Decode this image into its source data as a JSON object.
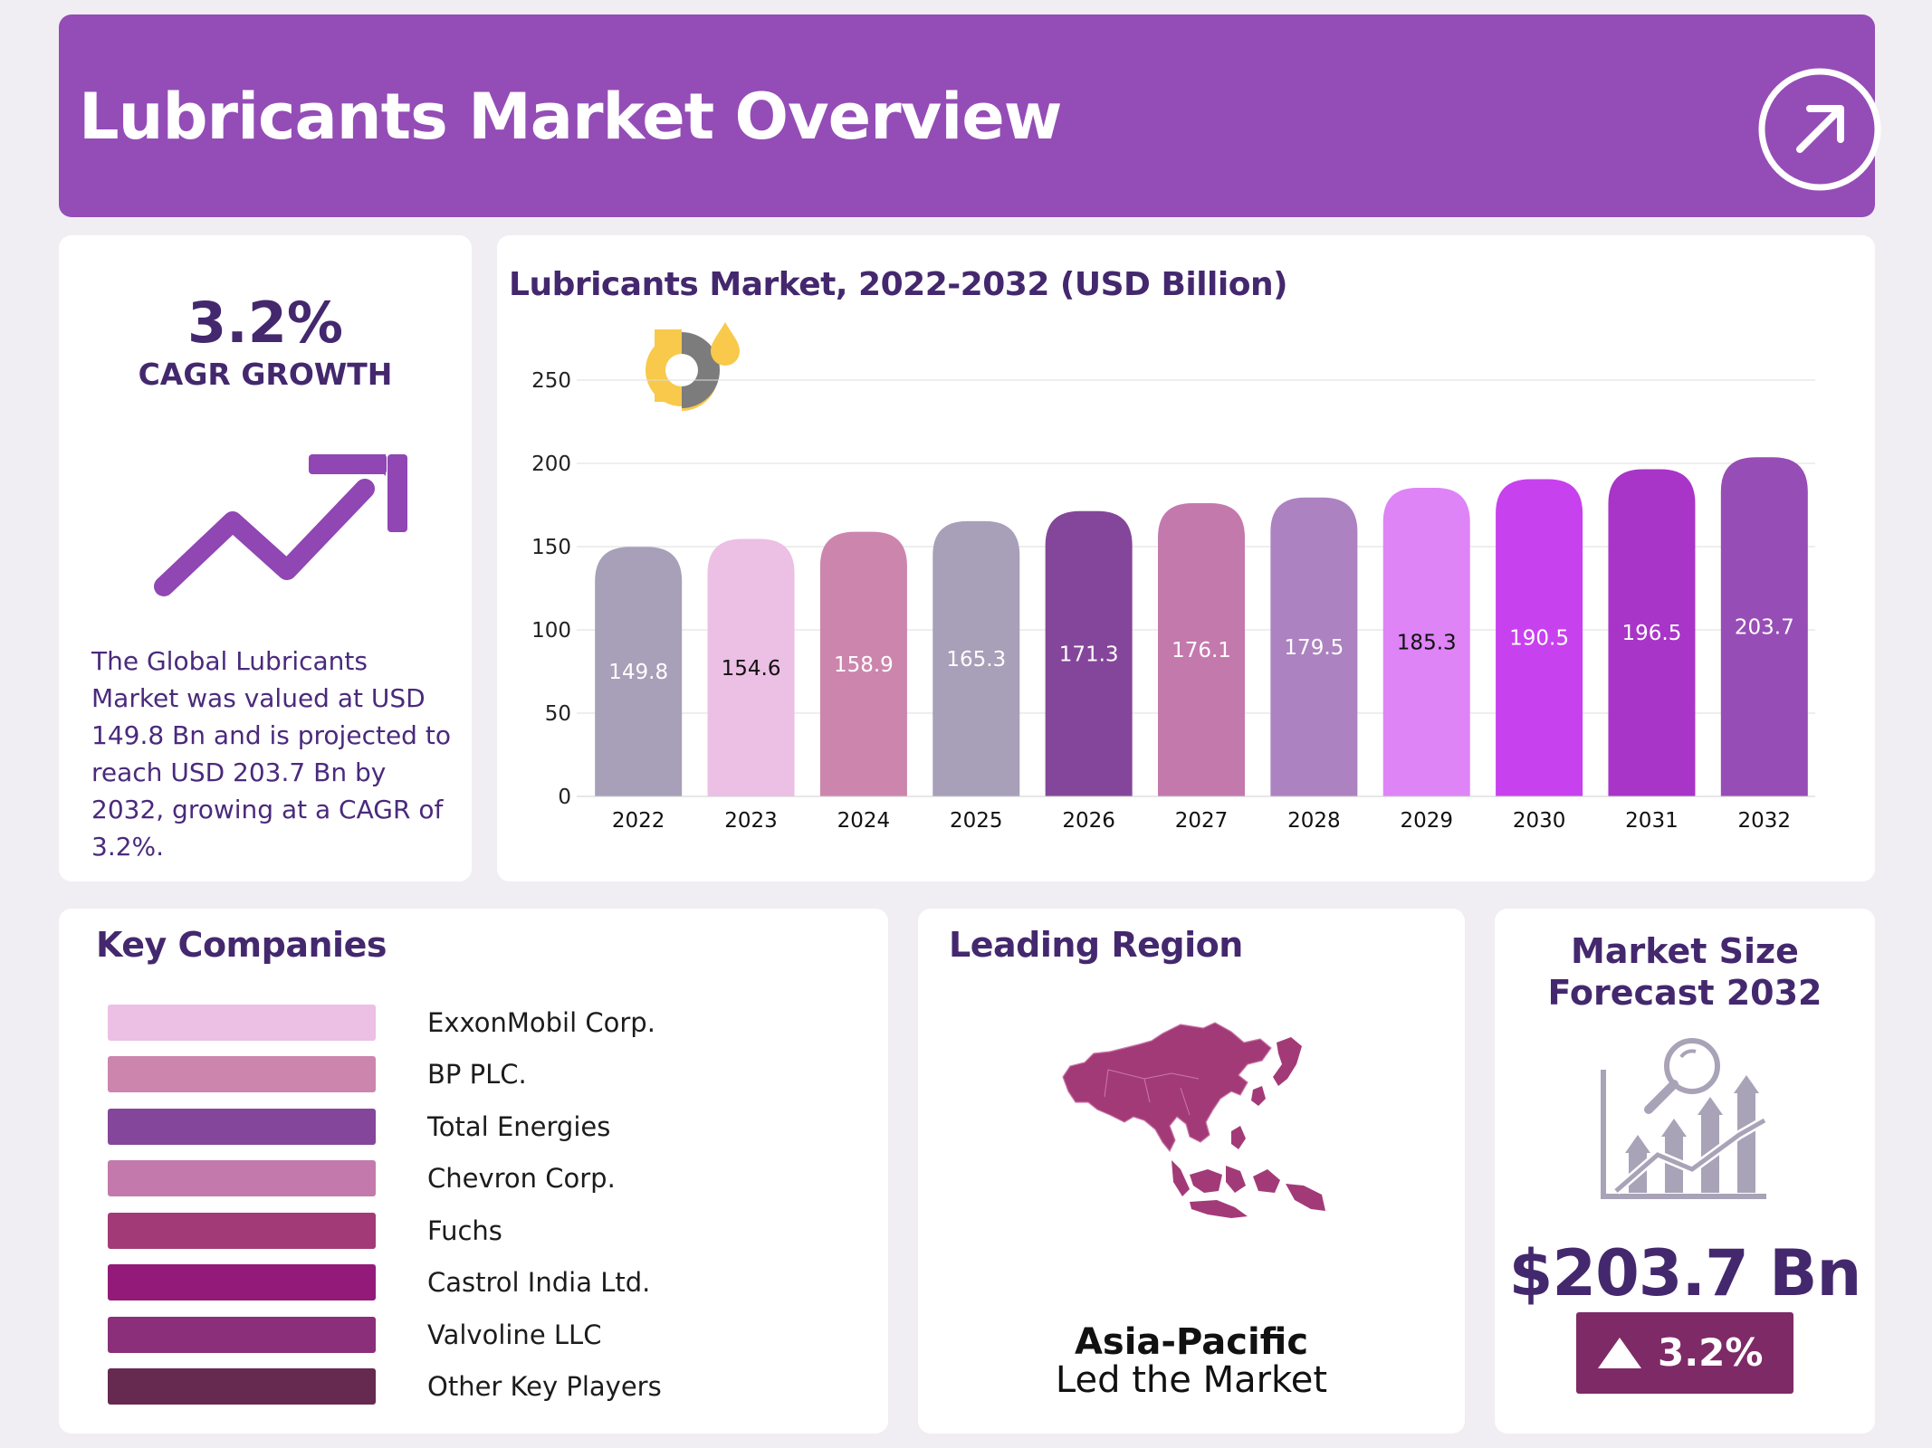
{
  "header": {
    "title": "Lubricants Market Overview",
    "action_icon": "arrow-up-right-circle-icon"
  },
  "cagr": {
    "value": "3.2%",
    "label": "CAGR GROWTH",
    "description": "The Global Lubricants Market was valued at USD 149.8 Bn and is projected to reach USD 203.7 Bn by 2032, growing at a CAGR of 3.2%."
  },
  "chart_data": {
    "type": "bar",
    "title": "Lubricants Market, 2022-2032 (USD Billion)",
    "xlabel": "",
    "ylabel": "",
    "categories": [
      "2022",
      "2023",
      "2024",
      "2025",
      "2026",
      "2027",
      "2028",
      "2029",
      "2030",
      "2031",
      "2032"
    ],
    "values": [
      149.8,
      154.6,
      158.9,
      165.3,
      171.3,
      176.1,
      179.5,
      185.3,
      190.5,
      196.5,
      203.7
    ],
    "value_labels": [
      "149.8",
      "154.6",
      "158.9",
      "165.3",
      "171.3",
      "176.1",
      "179.5",
      "185.3",
      "190.5",
      "196.5",
      "203.7"
    ],
    "colors": [
      "#a89fb8",
      "#ecbfe4",
      "#cc85ad",
      "#a89fb8",
      "#84469a",
      "#c479ad",
      "#ad82c0",
      "#de84f6",
      "#c841ee",
      "#a835c8",
      "#974db6"
    ],
    "label_colors": [
      "#ffffff",
      "#111111",
      "#ffffff",
      "#ffffff",
      "#ffffff",
      "#ffffff",
      "#ffffff",
      "#111111",
      "#ffffff",
      "#ffffff",
      "#ffffff"
    ],
    "ylim": [
      0,
      250
    ],
    "yticks": [
      0,
      50,
      100,
      150,
      200,
      250
    ],
    "grid": true,
    "legend": "none"
  },
  "companies": {
    "title": "Key Companies",
    "items": [
      {
        "name": "ExxonMobil Corp.",
        "color": "#ecbfe4"
      },
      {
        "name": "BP PLC.",
        "color": "#cc85ad"
      },
      {
        "name": "Total Energies",
        "color": "#84469a"
      },
      {
        "name": "Chevron Corp.",
        "color": "#c479ad"
      },
      {
        "name": "Fuchs",
        "color": "#a33a78"
      },
      {
        "name": "Castrol India Ltd.",
        "color": "#931a78"
      },
      {
        "name": "Valvoline LLC",
        "color": "#8b2f7a"
      },
      {
        "name": "Other Key Players",
        "color": "#66294f"
      }
    ]
  },
  "region": {
    "title": "Leading Region",
    "name": "Asia-Pacific",
    "subtitle": "Led the Market",
    "map_color": "#a33a78",
    "map_icon": "asia-pacific-map-icon"
  },
  "forecast": {
    "title_line1": "Market Size",
    "title_line2": "Forecast 2032",
    "value": "$203.7 Bn",
    "growth": "3.2%",
    "badge_color": "#7e2a67",
    "icon": "growth-analysis-icon"
  }
}
